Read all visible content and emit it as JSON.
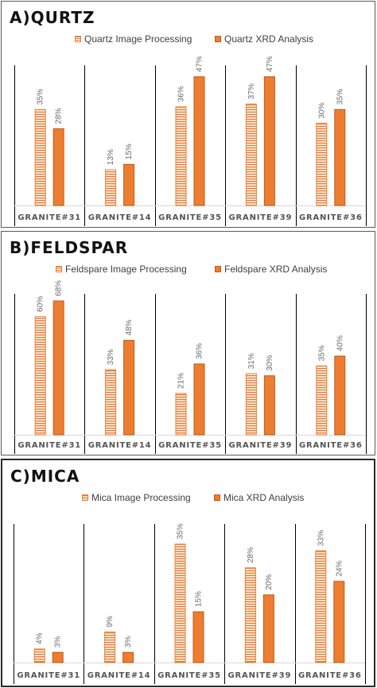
{
  "colors": {
    "accent": "#ed7d31",
    "accent_dark": "#c55a11",
    "text": "#404040",
    "divider": "#000000"
  },
  "panels": [
    {
      "title": "A)QURTZ",
      "legend": [
        "Quartz Image Processing",
        "Quartz XRD Analysis"
      ]
    },
    {
      "title": "B)FELDSPAR",
      "legend": [
        "Feldspare  Image Processing",
        "Feldspare  XRD Analysis"
      ]
    },
    {
      "title": "C)MICA",
      "legend": [
        "Mica Image Processing",
        "Mica XRD Analysis"
      ]
    }
  ],
  "chart_data": [
    {
      "type": "bar",
      "title": "A)QURTZ",
      "categories": [
        "GRANITE#31",
        "GRANITE#14",
        "GRANITE#35",
        "GRANITE#39",
        "GRANITE#36"
      ],
      "series": [
        {
          "name": "Quartz Image Processing",
          "values": [
            35,
            13,
            36,
            37,
            30
          ],
          "labels": [
            "35%",
            "13%",
            "36%",
            "37%",
            "30%"
          ],
          "pattern": "striped"
        },
        {
          "name": "Quartz XRD Analysis",
          "values": [
            28,
            15,
            47,
            47,
            35
          ],
          "labels": [
            "28%",
            "15%",
            "47%",
            "47%",
            "35%"
          ],
          "pattern": "solid"
        }
      ],
      "ylim": [
        0,
        50
      ],
      "grid": false,
      "legend_position": "top"
    },
    {
      "type": "bar",
      "title": "B)FELDSPAR",
      "categories": [
        "GRANITE#31",
        "GRANITE#14",
        "GRANITE#35",
        "GRANITE#39",
        "GRANITE#36"
      ],
      "series": [
        {
          "name": "Feldspare  Image Processing",
          "values": [
            60,
            33,
            21,
            31,
            35
          ],
          "labels": [
            "60%",
            "33%",
            "21%",
            "31%",
            "35%"
          ],
          "pattern": "striped"
        },
        {
          "name": "Feldspare  XRD Analysis",
          "values": [
            68,
            48,
            36,
            30,
            40
          ],
          "labels": [
            "68%",
            "48%",
            "36%",
            "30%",
            "40%"
          ],
          "pattern": "solid"
        }
      ],
      "ylim": [
        0,
        70
      ],
      "grid": false,
      "legend_position": "top"
    },
    {
      "type": "bar",
      "title": "C)MICA",
      "categories": [
        "GRANITE#31",
        "GRANITE#14",
        "GRANITE#35",
        "GRANITE#39",
        "GRANITE#36"
      ],
      "series": [
        {
          "name": "Mica Image Processing",
          "values": [
            4,
            9,
            35,
            28,
            33
          ],
          "labels": [
            "4%",
            "9%",
            "35%",
            "28%",
            "33%"
          ],
          "pattern": "striped"
        },
        {
          "name": "Mica XRD Analysis",
          "values": [
            3,
            3,
            15,
            20,
            24
          ],
          "labels": [
            "3%",
            "3%",
            "15%",
            "20%",
            "24%"
          ],
          "pattern": "solid"
        }
      ],
      "ylim": [
        0,
        40
      ],
      "grid": false,
      "legend_position": "top"
    }
  ]
}
